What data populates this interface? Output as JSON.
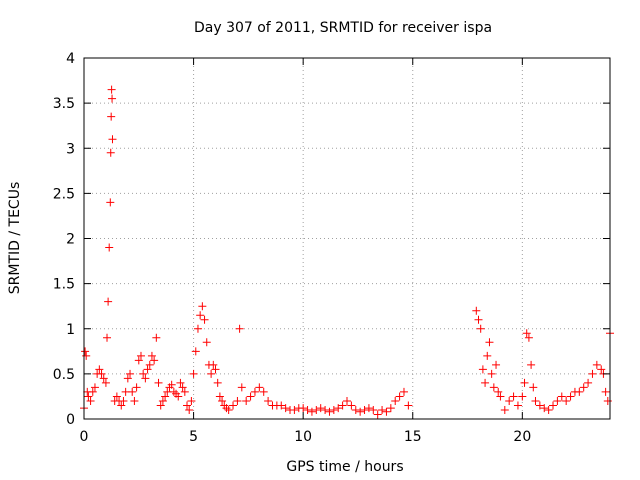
{
  "chart_data": {
    "type": "scatter",
    "title": "Day 307 of 2011, SRMTID for receiver ispa",
    "xlabel": "GPS time / hours",
    "ylabel": "SRMTID / TECUs",
    "xlim": [
      0,
      24
    ],
    "ylim": [
      0,
      4
    ],
    "xticks": [
      0,
      5,
      10,
      15,
      20
    ],
    "xtick_labels": [
      "0",
      "5",
      "10",
      "15",
      "20"
    ],
    "yticks": [
      0,
      0.5,
      1,
      1.5,
      2,
      2.5,
      3,
      3.5,
      4
    ],
    "ytick_labels": [
      "0",
      "0.5",
      "1",
      "1.5",
      "2",
      "2.5",
      "3",
      "3.5",
      "4"
    ],
    "grid": true,
    "marker": "+",
    "color": "#ff0000",
    "series": [
      {
        "name": "SRMTID",
        "x": [
          0.0,
          0.05,
          0.1,
          0.15,
          0.2,
          0.3,
          0.4,
          0.5,
          0.6,
          0.7,
          0.8,
          0.9,
          1.0,
          1.05,
          1.1,
          1.15,
          1.2,
          1.22,
          1.24,
          1.26,
          1.28,
          1.3,
          1.4,
          1.5,
          1.6,
          1.7,
          1.8,
          1.9,
          2.0,
          2.1,
          2.2,
          2.3,
          2.4,
          2.5,
          2.6,
          2.7,
          2.8,
          2.9,
          3.0,
          3.1,
          3.2,
          3.3,
          3.4,
          3.5,
          3.6,
          3.7,
          3.8,
          3.9,
          4.0,
          4.1,
          4.2,
          4.3,
          4.4,
          4.5,
          4.6,
          4.7,
          4.8,
          4.9,
          5.0,
          5.1,
          5.2,
          5.3,
          5.4,
          5.5,
          5.6,
          5.7,
          5.8,
          5.9,
          6.0,
          6.1,
          6.2,
          6.3,
          6.4,
          6.5,
          6.6,
          6.8,
          7.0,
          7.1,
          7.2,
          7.4,
          7.6,
          7.8,
          8.0,
          8.2,
          8.4,
          8.6,
          8.8,
          9.0,
          9.2,
          9.4,
          9.6,
          9.8,
          10.0,
          10.2,
          10.4,
          10.6,
          10.8,
          11.0,
          11.2,
          11.4,
          11.6,
          11.8,
          12.0,
          12.2,
          12.4,
          12.6,
          12.8,
          13.0,
          13.2,
          13.4,
          13.6,
          13.8,
          14.0,
          14.2,
          14.4,
          14.6,
          14.8,
          17.9,
          18.0,
          18.1,
          18.2,
          18.3,
          18.4,
          18.5,
          18.6,
          18.7,
          18.8,
          18.9,
          19.0,
          19.2,
          19.4,
          19.6,
          19.8,
          20.0,
          20.1,
          20.2,
          20.3,
          20.4,
          20.5,
          20.6,
          20.8,
          21.0,
          21.2,
          21.4,
          21.6,
          21.8,
          22.0,
          22.2,
          22.4,
          22.6,
          22.8,
          23.0,
          23.2,
          23.4,
          23.6,
          23.7,
          23.8,
          23.9,
          24.0
        ],
        "y": [
          0.12,
          0.75,
          0.7,
          0.3,
          0.25,
          0.2,
          0.3,
          0.35,
          0.5,
          0.55,
          0.5,
          0.45,
          0.4,
          0.9,
          1.3,
          1.9,
          2.4,
          2.95,
          3.35,
          3.65,
          3.55,
          3.1,
          0.2,
          0.25,
          0.2,
          0.15,
          0.2,
          0.3,
          0.45,
          0.5,
          0.3,
          0.2,
          0.35,
          0.65,
          0.7,
          0.5,
          0.45,
          0.55,
          0.6,
          0.7,
          0.65,
          0.9,
          0.4,
          0.15,
          0.2,
          0.25,
          0.3,
          0.35,
          0.38,
          0.3,
          0.28,
          0.25,
          0.4,
          0.35,
          0.3,
          0.15,
          0.1,
          0.2,
          0.5,
          0.75,
          1.0,
          1.15,
          1.25,
          1.1,
          0.85,
          0.6,
          0.5,
          0.6,
          0.55,
          0.4,
          0.25,
          0.2,
          0.15,
          0.12,
          0.1,
          0.15,
          0.2,
          1.0,
          0.35,
          0.2,
          0.25,
          0.3,
          0.35,
          0.3,
          0.2,
          0.15,
          0.15,
          0.15,
          0.12,
          0.1,
          0.1,
          0.12,
          0.12,
          0.1,
          0.08,
          0.1,
          0.12,
          0.1,
          0.08,
          0.1,
          0.12,
          0.15,
          0.2,
          0.15,
          0.1,
          0.08,
          0.1,
          0.12,
          0.1,
          0.05,
          0.1,
          0.08,
          0.12,
          0.2,
          0.25,
          0.3,
          0.15,
          1.2,
          1.1,
          1.0,
          0.55,
          0.4,
          0.7,
          0.85,
          0.5,
          0.35,
          0.6,
          0.3,
          0.25,
          0.1,
          0.2,
          0.25,
          0.15,
          0.25,
          0.4,
          0.95,
          0.9,
          0.6,
          0.35,
          0.2,
          0.15,
          0.12,
          0.1,
          0.15,
          0.2,
          0.25,
          0.2,
          0.25,
          0.3,
          0.3,
          0.35,
          0.4,
          0.5,
          0.6,
          0.55,
          0.5,
          0.3,
          0.2,
          0.95
        ]
      }
    ]
  }
}
